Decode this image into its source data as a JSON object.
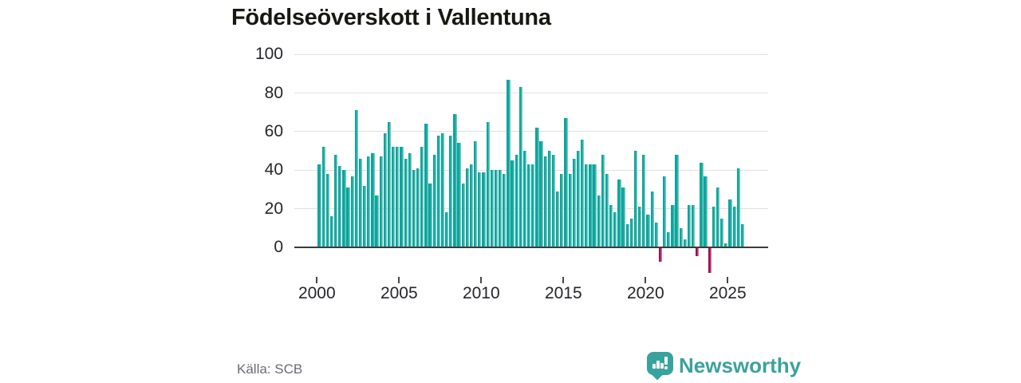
{
  "title": "Födelseöverskott i Vallentuna",
  "source": "Källa: SCB",
  "logo": {
    "text": "Newsworthy",
    "icon": "newsworthy-chart-bubble-icon"
  },
  "colors": {
    "bar_positive": "#0ca59d",
    "bar_positive_highlight": "#72c8c2",
    "bar_negative": "#a30b4d",
    "bar_negative_highlight": "#c9739a",
    "axis": "#3c3c3c",
    "grid": "#e0e0e0",
    "title_text": "#181813",
    "tick_label": "#26262b",
    "source_text": "#6b6b74",
    "logo_teal": "#3aa29b"
  },
  "chart_data": {
    "type": "bar",
    "title": "Födelseöverskott i Vallentuna",
    "x_unit": "quarter",
    "first_period": "2000 Q1",
    "last_period": "2025 Q4",
    "x_tick_labels": [
      "2000",
      "2005",
      "2010",
      "2015",
      "2020",
      "2025"
    ],
    "y_ticks": [
      0,
      20,
      40,
      60,
      80,
      100
    ],
    "y_tick_labels": [
      "0",
      "20",
      "40",
      "60",
      "80",
      "100"
    ],
    "ylim": [
      -15,
      100
    ],
    "grid": "horizontal",
    "legend": "none",
    "values": [
      43,
      52,
      38,
      16,
      48,
      42,
      40,
      31,
      37,
      71,
      46,
      32,
      47,
      49,
      27,
      47,
      59,
      65,
      52,
      52,
      52,
      46,
      49,
      40,
      41,
      52,
      64,
      33,
      48,
      58,
      59,
      18,
      58,
      69,
      54,
      33,
      41,
      43,
      55,
      39,
      39,
      65,
      40,
      40,
      40,
      38,
      87,
      45,
      48,
      83,
      50,
      43,
      43,
      62,
      55,
      47,
      50,
      48,
      29,
      38,
      67,
      38,
      46,
      50,
      56,
      43,
      43,
      43,
      27,
      48,
      38,
      22,
      18,
      35,
      31,
      12,
      15,
      50,
      21,
      48,
      17,
      29,
      13,
      -7,
      37,
      8,
      22,
      48,
      10,
      4,
      22,
      22,
      -4,
      44,
      37,
      -13,
      21,
      31,
      15,
      2,
      25,
      21,
      41,
      12
    ]
  }
}
